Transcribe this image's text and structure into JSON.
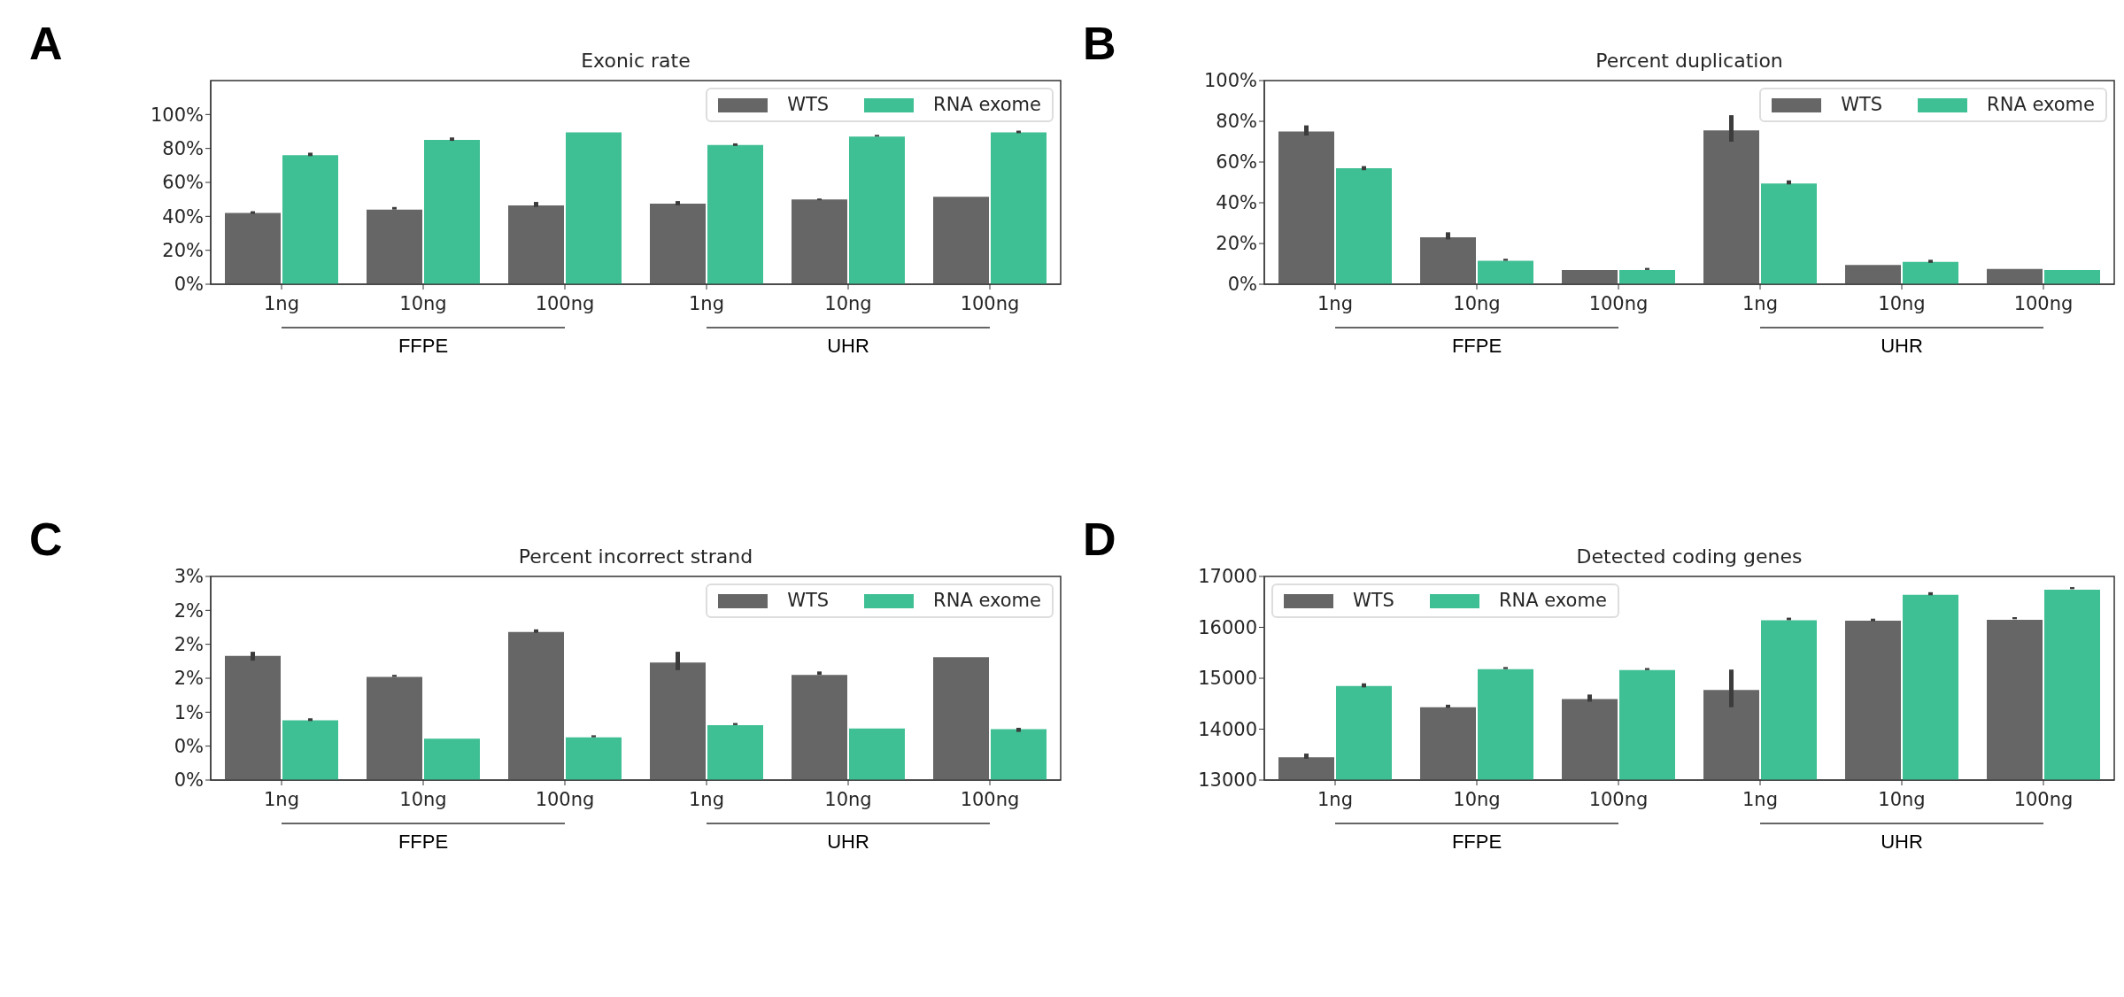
{
  "chart_data": [
    {
      "type": "bar",
      "title": "Exonic rate",
      "categories": [
        "1ng",
        "10ng",
        "100ng",
        "1ng",
        "10ng",
        "100ng"
      ],
      "annotations": [
        "A",
        "FFPE",
        "UHR"
      ],
      "legend": "top right",
      "ylim": [
        0,
        120
      ],
      "yticks": [
        {
          "value": 0,
          "label": "0%"
        },
        {
          "value": 20,
          "label": "20%"
        },
        {
          "value": 40,
          "label": "40%"
        },
        {
          "value": 60,
          "label": "60%"
        },
        {
          "value": 80,
          "label": "80%"
        },
        {
          "value": 100,
          "label": "100%"
        }
      ],
      "series": [
        {
          "name": "WTS",
          "color": "#666666",
          "values": [
            42,
            44,
            46.5,
            47.5,
            50,
            51.5
          ],
          "errors": [
            [
              41.5,
              43
            ],
            [
              44,
              45.5
            ],
            [
              45.5,
              48.5
            ],
            [
              46.5,
              49
            ],
            [
              49.5,
              50.5
            ],
            null
          ]
        },
        {
          "name": "RNA exome",
          "color": "#3fbf94",
          "values": [
            76,
            85,
            89.5,
            82,
            87,
            89.5
          ],
          "errors": [
            [
              75.5,
              77.5
            ],
            [
              84.5,
              86.5
            ],
            null,
            [
              81.5,
              83
            ],
            [
              87,
              88
            ],
            [
              89,
              90.5
            ]
          ]
        }
      ]
    },
    {
      "type": "bar",
      "title": "Percent duplication",
      "categories": [
        "1ng",
        "10ng",
        "100ng",
        "1ng",
        "10ng",
        "100ng"
      ],
      "annotations": [
        "B",
        "FFPE",
        "UHR"
      ],
      "legend": "top right",
      "ylim": [
        0,
        100
      ],
      "yticks": [
        {
          "value": 0,
          "label": "0%"
        },
        {
          "value": 20,
          "label": "20%"
        },
        {
          "value": 40,
          "label": "40%"
        },
        {
          "value": 60,
          "label": "60%"
        },
        {
          "value": 80,
          "label": "80%"
        },
        {
          "value": 100,
          "label": "100%"
        }
      ],
      "series": [
        {
          "name": "WTS",
          "color": "#666666",
          "values": [
            75,
            23,
            7,
            75.5,
            9.5,
            7.5
          ],
          "errors": [
            [
              73,
              78
            ],
            [
              22,
              25.5
            ],
            null,
            [
              70,
              83
            ],
            null,
            null
          ]
        },
        {
          "name": "RNA exome",
          "color": "#3fbf94",
          "values": [
            57,
            11.5,
            7,
            49.5,
            11,
            7
          ],
          "errors": [
            [
              56,
              58
            ],
            [
              11.5,
              12.5
            ],
            [
              7,
              8
            ],
            [
              49,
              51
            ],
            [
              10.5,
              12
            ],
            null
          ]
        }
      ]
    },
    {
      "type": "bar",
      "title": "Percent incorrect strand",
      "categories": [
        "1ng",
        "10ng",
        "100ng",
        "1ng",
        "10ng",
        "100ng"
      ],
      "annotations": [
        "C",
        "FFPE",
        "UHR"
      ],
      "legend": "top right",
      "ylim": [
        0,
        3
      ],
      "yticks": [
        {
          "value": 0,
          "label": "0%"
        },
        {
          "value": 0.5,
          "label": "0%"
        },
        {
          "value": 1,
          "label": "1%"
        },
        {
          "value": 1.5,
          "label": "2%"
        },
        {
          "value": 2,
          "label": "2%"
        },
        {
          "value": 2.5,
          "label": "2%"
        },
        {
          "value": 3,
          "label": "3%"
        }
      ],
      "series": [
        {
          "name": "WTS",
          "color": "#666666",
          "values": [
            1.83,
            1.52,
            2.18,
            1.73,
            1.55,
            1.81
          ],
          "errors": [
            [
              1.76,
              1.89
            ],
            [
              1.52,
              1.55
            ],
            [
              2.17,
              2.22
            ],
            [
              1.62,
              1.89
            ],
            [
              1.55,
              1.6
            ],
            null
          ]
        },
        {
          "name": "RNA exome",
          "color": "#3fbf94",
          "values": [
            0.88,
            0.61,
            0.63,
            0.81,
            0.76,
            0.75
          ],
          "errors": [
            [
              0.87,
              0.91
            ],
            null,
            [
              0.63,
              0.66
            ],
            [
              0.81,
              0.84
            ],
            null,
            [
              0.71,
              0.77
            ]
          ]
        }
      ]
    },
    {
      "type": "bar",
      "title": "Detected coding genes",
      "categories": [
        "1ng",
        "10ng",
        "100ng",
        "1ng",
        "10ng",
        "100ng"
      ],
      "annotations": [
        "D",
        "FFPE",
        "UHR"
      ],
      "legend": "top left",
      "ylim": [
        13000,
        17000
      ],
      "yticks": [
        13000,
        14000,
        15000,
        16000,
        17000
      ],
      "series": [
        {
          "name": "WTS",
          "color": "#666666",
          "values": [
            13450,
            14430,
            14590,
            14770,
            16130,
            16150
          ],
          "errors": [
            [
              13420,
              13520
            ],
            [
              14420,
              14480
            ],
            [
              14540,
              14680
            ],
            [
              14430,
              15170
            ],
            [
              16120,
              16170
            ],
            [
              16160,
              16200
            ]
          ]
        },
        {
          "name": "RNA exome",
          "color": "#3fbf94",
          "values": [
            14850,
            15180,
            15160,
            16140,
            16640,
            16740
          ],
          "errors": [
            [
              14820,
              14900
            ],
            [
              15180,
              15220
            ],
            [
              15160,
              15200
            ],
            [
              16140,
              16190
            ],
            [
              16630,
              16690
            ],
            [
              16750,
              16790
            ]
          ]
        }
      ]
    }
  ]
}
